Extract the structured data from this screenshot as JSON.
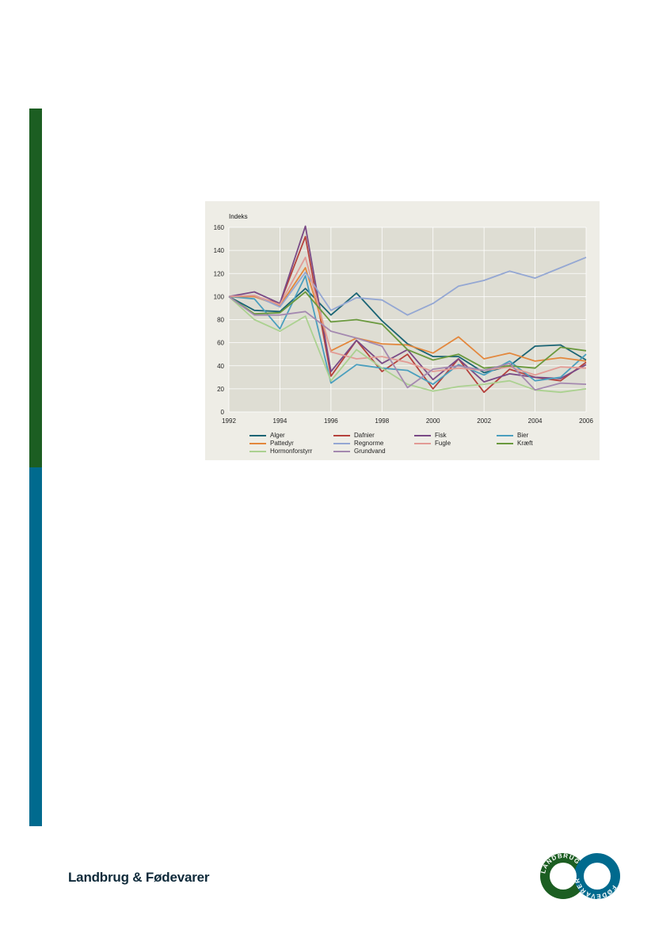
{
  "footer": {
    "brand": "Landbrug & Fødevarer"
  },
  "logo": {
    "left_text": "LANDBRUG",
    "right_text": "FØDEVARER",
    "left_color": "#1c5e22",
    "right_color": "#006a8e"
  },
  "colors": {
    "bar_top": "#1c5e22",
    "bar_bottom": "#006a8e",
    "figure_bg": "#eeede6",
    "plot_bg": "#deddd3"
  },
  "chart_data": {
    "type": "line",
    "title": "",
    "ylabel": "Indeks",
    "xlabel": "",
    "xlim": [
      1992,
      2006
    ],
    "ylim": [
      0,
      160
    ],
    "yticks": [
      0,
      20,
      40,
      60,
      80,
      100,
      120,
      140,
      160
    ],
    "xticks": [
      1992,
      1994,
      1996,
      1998,
      2000,
      2002,
      2004,
      2006
    ],
    "grid": true,
    "legend_position": "bottom",
    "x": [
      1992,
      1993,
      1994,
      1995,
      1996,
      1997,
      1998,
      1999,
      2000,
      2001,
      2002,
      2003,
      2004,
      2005,
      2006
    ],
    "series": [
      {
        "name": "Alger",
        "color": "#1a6474",
        "values": [
          100,
          88,
          87,
          107,
          84,
          103,
          79,
          59,
          48,
          48,
          34,
          40,
          57,
          58,
          45
        ]
      },
      {
        "name": "Dafnier",
        "color": "#b5413c",
        "values": [
          100,
          100,
          94,
          152,
          31,
          62,
          35,
          50,
          20,
          46,
          17,
          37,
          30,
          27,
          43
        ]
      },
      {
        "name": "Fisk",
        "color": "#7a4a86",
        "values": [
          100,
          104,
          94,
          161,
          35,
          62,
          42,
          54,
          28,
          46,
          26,
          33,
          30,
          29,
          41
        ]
      },
      {
        "name": "Bier",
        "color": "#4b9fbe",
        "values": [
          100,
          98,
          72,
          118,
          25,
          41,
          38,
          36,
          24,
          41,
          32,
          44,
          27,
          30,
          50
        ]
      },
      {
        "name": "Pattedyr",
        "color": "#e3873c",
        "values": [
          100,
          100,
          92,
          125,
          53,
          64,
          59,
          58,
          51,
          65,
          46,
          51,
          44,
          47,
          44
        ]
      },
      {
        "name": "Regnorme",
        "color": "#94a7d3",
        "values": [
          100,
          101,
          91,
          121,
          88,
          99,
          97,
          84,
          94,
          109,
          114,
          122,
          116,
          125,
          134
        ]
      },
      {
        "name": "Fugle",
        "color": "#e29b95",
        "values": [
          100,
          101,
          93,
          134,
          52,
          46,
          48,
          43,
          35,
          38,
          36,
          39,
          32,
          39,
          38
        ]
      },
      {
        "name": "Kræft",
        "color": "#6a993e",
        "values": [
          100,
          85,
          86,
          104,
          78,
          80,
          76,
          54,
          45,
          50,
          38,
          40,
          38,
          56,
          53
        ]
      },
      {
        "name": "Hormonforstyrr",
        "color": "#abd190",
        "values": [
          100,
          80,
          70,
          83,
          27,
          54,
          38,
          24,
          18,
          22,
          24,
          27,
          19,
          17,
          20
        ]
      },
      {
        "name": "Grundvand",
        "color": "#a489b0",
        "values": [
          100,
          84,
          84,
          87,
          70,
          64,
          57,
          21,
          37,
          40,
          36,
          42,
          19,
          25,
          24
        ]
      }
    ]
  }
}
